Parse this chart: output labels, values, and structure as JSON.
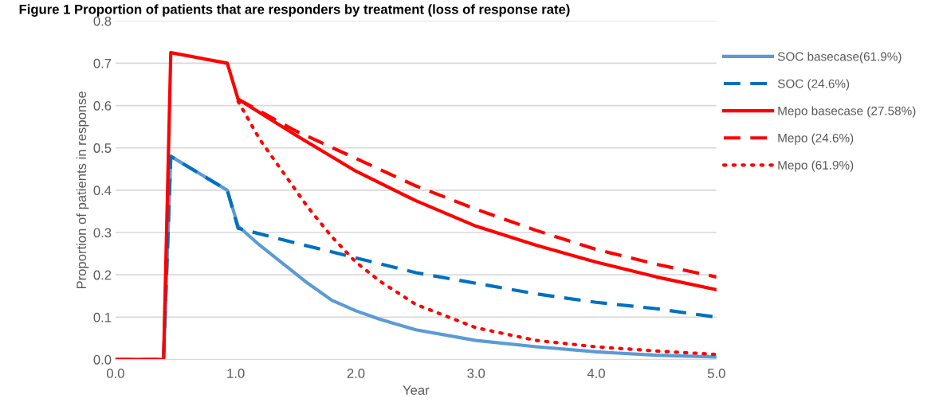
{
  "chart_data": {
    "type": "line",
    "title": "Figure 1 Proportion of patients that are responders by treatment (loss of response rate)",
    "xlabel": "Year",
    "ylabel": "Proportion of patients in response",
    "xlim": [
      0,
      5
    ],
    "xticks": [
      {
        "value": 0,
        "label": "0.0"
      },
      {
        "value": 1,
        "label": "1.0"
      },
      {
        "value": 2,
        "label": "2.0"
      },
      {
        "value": 3,
        "label": "3.0"
      },
      {
        "value": 4,
        "label": "4.0"
      },
      {
        "value": 5,
        "label": "5.0"
      }
    ],
    "ylim": [
      0,
      0.8
    ],
    "yticks": [
      {
        "value": 0,
        "label": "0.0"
      },
      0.1,
      0.2,
      0.3,
      0.4,
      0.5,
      0.6,
      0.7,
      0.8
    ],
    "grid": "y",
    "legend": "right",
    "marker": "none",
    "series": [
      {
        "name": "SOC basecase(61.9%)",
        "color": "#5b9bd5",
        "line_style": "solid",
        "x": [
          0,
          0.4,
          0.46,
          0.93,
          1.02,
          1.2,
          1.4,
          1.6,
          1.8,
          2.0,
          2.2,
          2.5,
          3.0,
          3.5,
          4.0,
          4.5,
          5.0
        ],
        "values": [
          0,
          0,
          0.48,
          0.4,
          0.315,
          0.27,
          0.225,
          0.18,
          0.14,
          0.115,
          0.095,
          0.07,
          0.045,
          0.03,
          0.018,
          0.01,
          0.006
        ]
      },
      {
        "name": "SOC (24.6%)",
        "color": "#0070c0",
        "line_style": "dashed",
        "x": [
          0,
          0.4,
          0.46,
          0.93,
          1.02,
          1.5,
          2.0,
          2.5,
          3.0,
          3.5,
          4.0,
          4.5,
          5.0
        ],
        "values": [
          0,
          0,
          0.48,
          0.4,
          0.31,
          0.275,
          0.24,
          0.205,
          0.18,
          0.155,
          0.135,
          0.12,
          0.1
        ]
      },
      {
        "name": "Mepo basecase (27.58%)",
        "color": "#ff0000",
        "line_style": "solid",
        "x": [
          0,
          0.4,
          0.46,
          0.93,
          1.02,
          1.5,
          2.0,
          2.5,
          3.0,
          3.5,
          4.0,
          4.5,
          5.0
        ],
        "values": [
          0,
          0,
          0.725,
          0.7,
          0.615,
          0.53,
          0.445,
          0.375,
          0.315,
          0.27,
          0.23,
          0.195,
          0.165
        ]
      },
      {
        "name": "Mepo (24.6%)",
        "color": "#ff0000",
        "line_style": "dashed",
        "x": [
          1.02,
          1.5,
          2.0,
          2.5,
          3.0,
          3.5,
          4.0,
          4.5,
          5.0
        ],
        "values": [
          0.615,
          0.54,
          0.475,
          0.41,
          0.355,
          0.305,
          0.26,
          0.225,
          0.195
        ]
      },
      {
        "name": "Mepo (61.9%)",
        "color": "#ff0000",
        "line_style": "dotted",
        "x": [
          1.02,
          1.2,
          1.4,
          1.6,
          1.8,
          2.0,
          2.2,
          2.5,
          3.0,
          3.5,
          4.0,
          4.5,
          5.0
        ],
        "values": [
          0.61,
          0.52,
          0.44,
          0.36,
          0.29,
          0.23,
          0.185,
          0.13,
          0.075,
          0.045,
          0.03,
          0.02,
          0.012
        ]
      }
    ]
  }
}
